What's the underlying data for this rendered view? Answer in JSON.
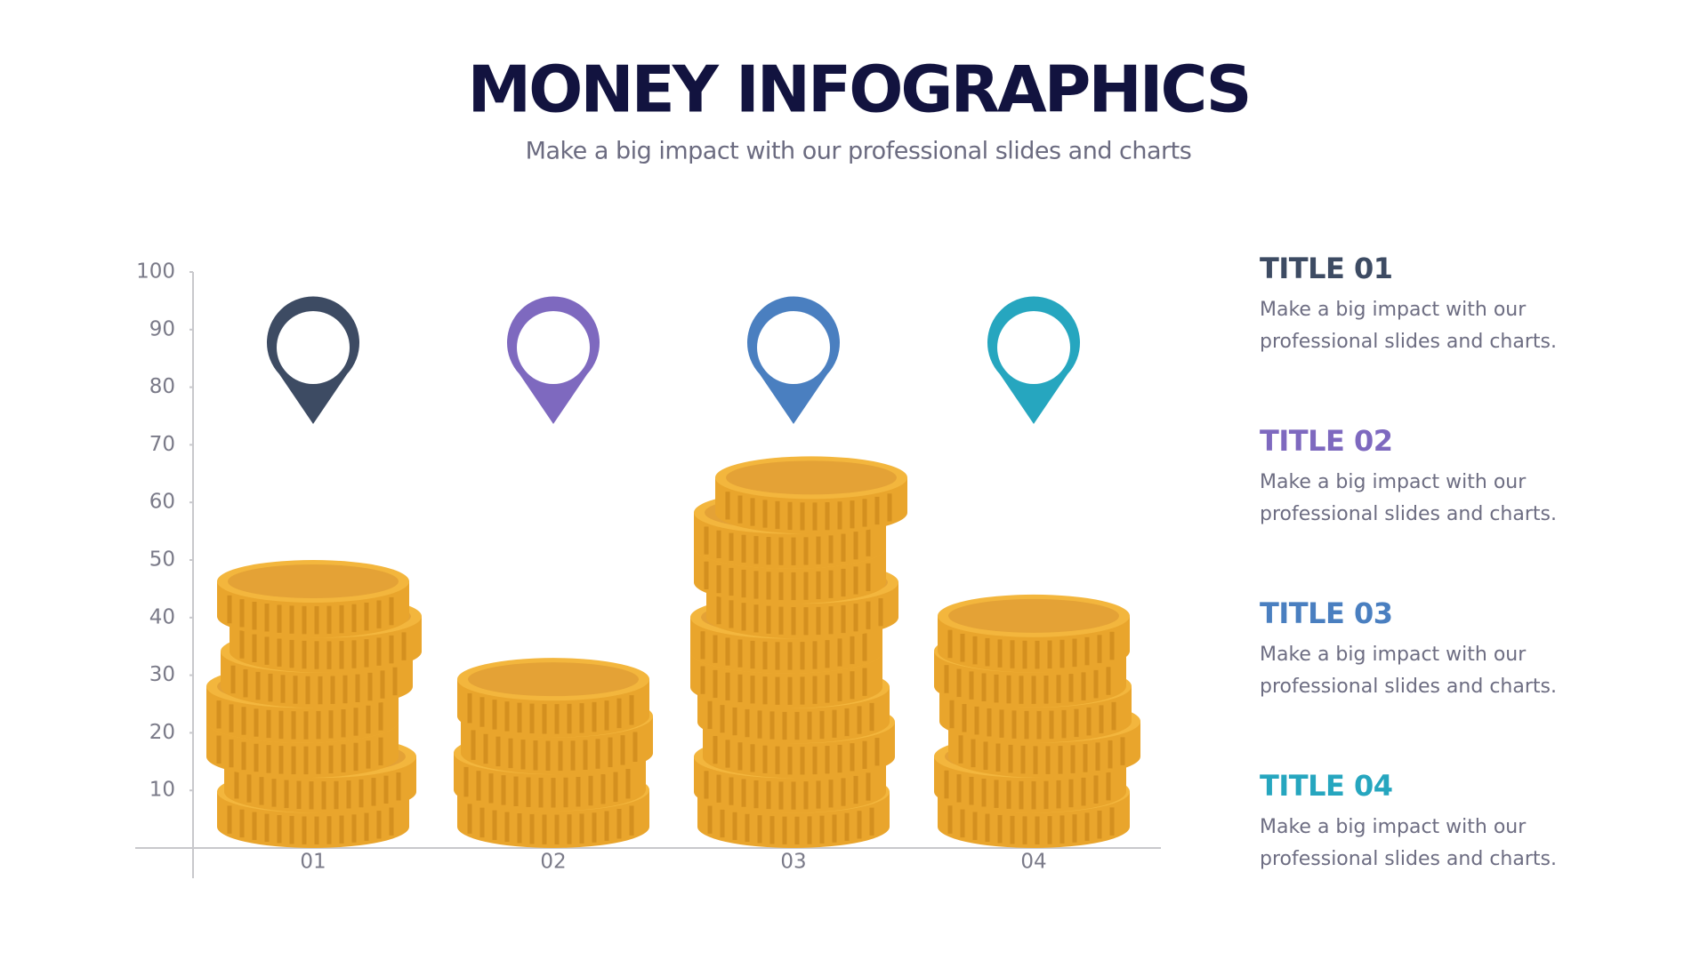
{
  "chart_data": {
    "type": "coin-stack",
    "title": "MONEY INFOGRAPHICS",
    "subtitle": "Make a big impact with our professional slides and charts",
    "categories": [
      "01",
      "02",
      "03",
      "04"
    ],
    "values": [
      50,
      33,
      68,
      44
    ],
    "color": "#eeaa32",
    "pin_colors": [
      "#3d4b63",
      "#7e69bf",
      "#4a7fc0",
      "#26a6bf"
    ],
    "ylim": [
      0,
      100
    ],
    "yticks": [
      10,
      20,
      30,
      40,
      50,
      60,
      70,
      80,
      90,
      100
    ]
  },
  "sidebar": [
    {
      "title": "TITLE 01",
      "text": "Make a big impact with our professional slides and charts."
    },
    {
      "title": "TITLE 02",
      "text": "Make a big impact with our professional slides and charts."
    },
    {
      "title": "TITLE 03",
      "text": "Make a big impact with our professional slides and charts."
    },
    {
      "title": "TITLE 04",
      "text": "Make a big impact with our professional slides and charts."
    }
  ]
}
